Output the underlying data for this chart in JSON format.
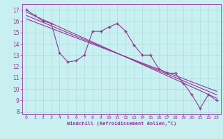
{
  "xlabel": "Windchill (Refroidissement éolien,°C)",
  "bg_color": "#c8f0f0",
  "line_color": "#993399",
  "grid_color": "#aadddd",
  "xlim": [
    -0.5,
    23.5
  ],
  "ylim": [
    7.8,
    17.5
  ],
  "yticks": [
    8,
    9,
    10,
    11,
    12,
    13,
    14,
    15,
    16,
    17
  ],
  "xticks": [
    0,
    1,
    2,
    3,
    4,
    5,
    6,
    7,
    8,
    9,
    10,
    11,
    12,
    13,
    14,
    15,
    16,
    17,
    18,
    19,
    20,
    21,
    22,
    23
  ],
  "series1_x": [
    0,
    1,
    2,
    3,
    4,
    5,
    6,
    7,
    8,
    9,
    10,
    11,
    12,
    13,
    14,
    15,
    16,
    17,
    18,
    19,
    20,
    21,
    22,
    23
  ],
  "series1_y": [
    17.0,
    16.5,
    16.0,
    15.8,
    13.2,
    12.4,
    12.5,
    13.0,
    15.1,
    15.1,
    15.5,
    15.8,
    15.1,
    13.9,
    13.0,
    13.0,
    11.8,
    11.4,
    11.4,
    10.5,
    9.5,
    8.3,
    9.5,
    9.0
  ],
  "series2_x": [
    0,
    23
  ],
  "series2_y": [
    16.8,
    9.2
  ],
  "series3_x": [
    0,
    23
  ],
  "series3_y": [
    16.5,
    9.5
  ],
  "series4_x": [
    0,
    23
  ],
  "series4_y": [
    16.2,
    9.8
  ]
}
